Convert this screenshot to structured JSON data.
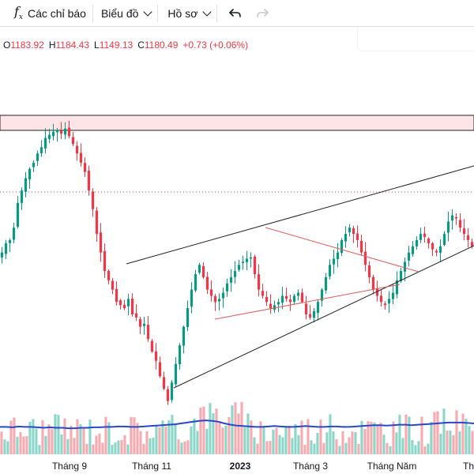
{
  "toolbar": {
    "indicators_label": "Các chỉ báo",
    "indicators_icon": "fx-icon",
    "chart_type_label": "Biểu đồ",
    "profile_label": "Hồ sơ",
    "undo_icon": "undo-icon",
    "redo_icon": "redo-icon"
  },
  "legend": {
    "open_key": "O",
    "open": "1183.92",
    "high_key": "H",
    "high": "1184.43",
    "low_key": "L",
    "low": "1149.13",
    "close_key": "C",
    "close": "1180.49",
    "change": "+0.73 (+0.06%)",
    "color_down": "#f23645"
  },
  "colors": {
    "up": "#089981",
    "down": "#f23645",
    "volume_ma": "#2848c8",
    "zone_fill": "#fde4e6",
    "zone_stroke": "#222222",
    "trend_line": "#222222",
    "triangle_line": "#e05a5a"
  },
  "chart_data": {
    "type": "candlestick",
    "x_tick_labels": [
      "Tháng 9",
      "Tháng 11",
      "2023",
      "Tháng 3",
      "Tháng Năm",
      "Th"
    ],
    "price_series": [
      1080,
      1095,
      1100,
      1120,
      1160,
      1180,
      1200,
      1215,
      1225,
      1240,
      1250,
      1265,
      1270,
      1275,
      1278,
      1272,
      1280,
      1268,
      1255,
      1240,
      1225,
      1210,
      1180,
      1150,
      1110,
      1080,
      1050,
      1035,
      1020,
      1000,
      995,
      990,
      1005,
      980,
      975,
      960,
      965,
      940,
      920,
      905,
      880,
      860,
      840,
      870,
      900,
      930,
      960,
      990,
      1020,
      1045,
      1060,
      1040,
      1020,
      1010,
      1000,
      1005,
      1015,
      1030,
      1040,
      1050,
      1060,
      1065,
      1070,
      1072,
      1045,
      1020,
      1010,
      1000,
      990,
      995,
      1000,
      1010,
      1005,
      1000,
      1010,
      1015,
      1000,
      980,
      975,
      985,
      1000,
      1020,
      1040,
      1060,
      1070,
      1080,
      1100,
      1110,
      1120,
      1110,
      1100,
      1080,
      1060,
      1040,
      1020,
      1010,
      1000,
      995,
      1005,
      1015,
      1035,
      1050,
      1065,
      1080,
      1090,
      1100,
      1110,
      1105,
      1095,
      1085,
      1080,
      1090,
      1110,
      1130,
      1140,
      1135,
      1120,
      1110,
      1100,
      1090
    ],
    "volume_ma_series": [
      52,
      52,
      51,
      53,
      52,
      52,
      51,
      50,
      51,
      50,
      50,
      49,
      49,
      50,
      50,
      51,
      51,
      52,
      52,
      53,
      53,
      52,
      52,
      53,
      54,
      55,
      56,
      57,
      58,
      60,
      62,
      64,
      66,
      67,
      66,
      64,
      60,
      57,
      55,
      54,
      53,
      52,
      52,
      53,
      54,
      53,
      52,
      52,
      53,
      54,
      53,
      52,
      52,
      53,
      53,
      52,
      52,
      53,
      54,
      55,
      56,
      56,
      55,
      56,
      57,
      57,
      56,
      57,
      58,
      59,
      60,
      61,
      62,
      62,
      62,
      61,
      60
    ]
  }
}
